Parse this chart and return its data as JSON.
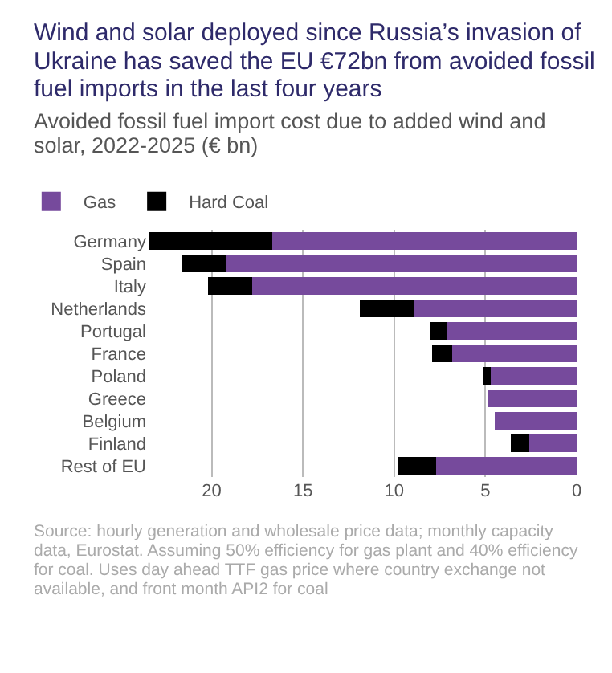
{
  "chart_data": {
    "type": "bar",
    "orientation": "horizontal",
    "stacked": true,
    "title": "Wind and solar deployed since Russia’s invasion of Ukraine has saved the EU €72bn from avoided fossil fuel imports in the last four years",
    "subtitle": "Avoided fossil fuel import cost due to added wind and solar, 2022-2025 (€ bn)",
    "categories": [
      "Germany",
      "Spain",
      "Italy",
      "Netherlands",
      "Portugal",
      "France",
      "Poland",
      "Greece",
      "Belgium",
      "Finland",
      "Rest of EU"
    ],
    "series": [
      {
        "name": "Gas",
        "color": "#764a9c",
        "values": [
          16.7,
          19.2,
          17.8,
          8.9,
          7.1,
          6.8,
          4.7,
          4.9,
          4.5,
          2.6,
          7.7
        ]
      },
      {
        "name": "Hard Coal",
        "color": "#000000",
        "values": [
          6.7,
          2.4,
          2.4,
          3.0,
          0.9,
          1.1,
          0.4,
          0,
          0,
          1.0,
          2.1
        ]
      }
    ],
    "xlim": [
      23.5,
      0
    ],
    "xticks": [
      20,
      15,
      10,
      5,
      0
    ],
    "grid": "x",
    "legend": "top left",
    "annotations": [
      "Source: hourly generation and wholesale price data; monthly capacity data, Eurostat. Assuming 50% efficiency for gas plant and 40% efficiency for coal. Uses day ahead TTF gas price where country exchange not available, and front month API2 for coal"
    ]
  }
}
